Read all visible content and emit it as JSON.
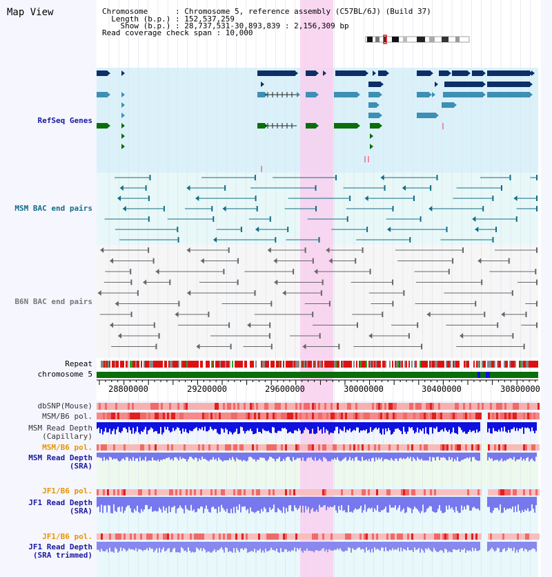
{
  "header": {
    "title": "Map View",
    "info_lines": [
      "Chromosome      : Chromosome 5, reference assembly (C57BL/6J) (Build 37)",
      "  Length (b.p.) : 152,537,259",
      "    Show (b.p.) : 28,737,531-30,893,839 : 2,156,309 bp",
      "Read coverage check span : 10,000"
    ]
  },
  "tracks": {
    "refseq": "RefSeq Genes",
    "msm_bac": "MSM BAC end pairs",
    "b6n_bac": "B6N BAC end pairs",
    "repeat": "Repeat",
    "chromosome": "chromosome 5",
    "dbsnp": "dbSNP(Mouse)",
    "msm_pol_1": "MSM/B6 pol.",
    "msm_depth_cap_1": "MSM Read Depth",
    "msm_depth_cap_2": "(Capillary)",
    "msm_pol_2": "MSM/B6 pol.",
    "msm_depth_sra_1": "MSM Read Depth",
    "msm_depth_sra_2": "(SRA)",
    "jf1_pol_1": "JF1/B6 pol.",
    "jf1_depth_sra_1": "JF1 Read Depth",
    "jf1_depth_sra_2": "(SRA)",
    "jf1_pol_2": "JF1/B6 pol.",
    "jf1_depth_trim_1": "JF1 Read Depth",
    "jf1_depth_trim_2": "(SRA trimmed)"
  },
  "axis": {
    "ticks": [
      "28800000",
      "29200000",
      "29600000",
      "30000000",
      "30400000",
      "30800000"
    ]
  },
  "colors": {
    "gene_dark": "#0b2f66",
    "gene_mid": "#3d8fb4",
    "gene_green": "#0a6e0a",
    "msm_bac": "#0f6d86",
    "b6n_bac": "#666666",
    "highlight": "#f8d0ee",
    "depth_dark": "#1010e0",
    "depth_light": "#7777ee",
    "pol_red": "#ee4444",
    "label_orange": "#e69500",
    "label_navy": "#1a1aa0",
    "label_teal": "#0f6d86"
  }
}
